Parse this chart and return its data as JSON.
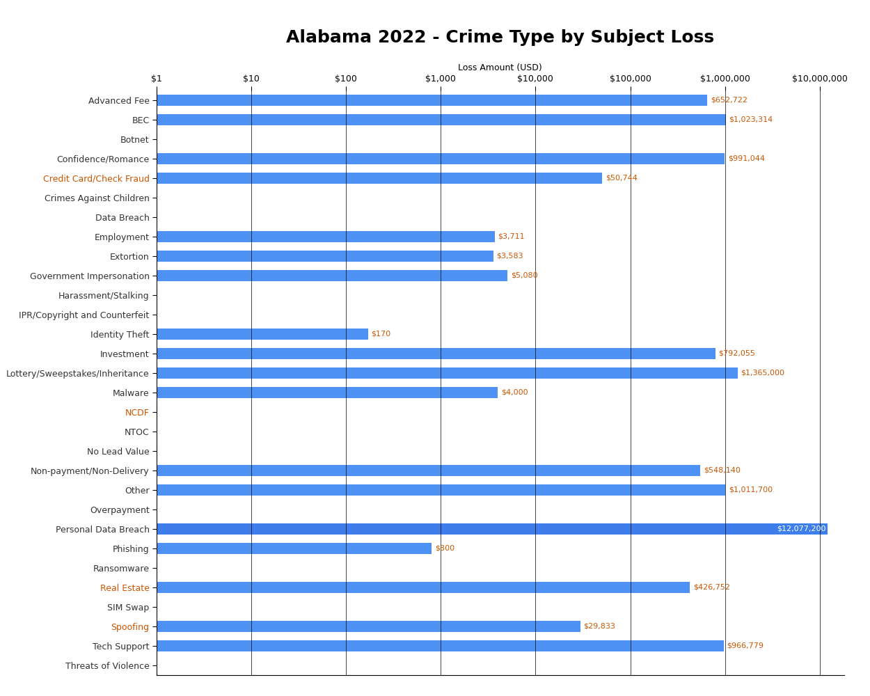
{
  "title": "Alabama 2022 - Crime Type by Subject Loss",
  "xlabel": "Loss Amount (USD)",
  "categories": [
    "Advanced Fee",
    "BEC",
    "Botnet",
    "Confidence/Romance",
    "Credit Card/Check Fraud",
    "Crimes Against Children",
    "Data Breach",
    "Employment",
    "Extortion",
    "Government Impersonation",
    "Harassment/Stalking",
    "IPR/Copyright and Counterfeit",
    "Identity Theft",
    "Investment",
    "Lottery/Sweepstakes/Inheritance",
    "Malware",
    "NCDF",
    "NTOC",
    "No Lead Value",
    "Non-payment/Non-Delivery",
    "Other",
    "Overpayment",
    "Personal Data Breach",
    "Phishing",
    "Ransomware",
    "Real Estate",
    "SIM Swap",
    "Spoofing",
    "Tech Support",
    "Threats of Violence"
  ],
  "values": [
    652722,
    1023314,
    0,
    991044,
    50744,
    0,
    0,
    3711,
    3583,
    5080,
    0,
    0,
    170,
    792055,
    1365000,
    4000,
    0,
    0,
    0,
    548140,
    1011700,
    0,
    12077200,
    800,
    0,
    426752,
    0,
    29833,
    966779,
    0
  ],
  "labels": [
    "$652,722",
    "$1,023,314",
    "",
    "$991,044",
    "$50,744",
    "",
    "",
    "$3,711",
    "$3,583",
    "$5,080",
    "",
    "",
    "$170",
    "$792,055",
    "$1,365,000",
    "$4,000",
    "",
    "",
    "",
    "$548,140",
    "$1,011,700",
    "",
    "$12,077,200",
    "$800",
    "",
    "$426,752",
    "",
    "$29,833",
    "$966,779",
    ""
  ],
  "special_labels": [
    "Credit Card/Check Fraud",
    "NCDF",
    "Real Estate",
    "Spoofing"
  ],
  "x_ticks": [
    1,
    10,
    100,
    1000,
    10000,
    100000,
    1000000,
    10000000
  ],
  "x_tick_labels": [
    "$1",
    "$10",
    "$100",
    "$1,000",
    "$10,000",
    "$100,000",
    "$1,000,000",
    "$10,000,000"
  ],
  "tick_color_map": {
    "$1": "#CC5500",
    "$10": "#333333",
    "$100": "#CC5500",
    "$1,000": "#333333",
    "$10,000": "#CC5500",
    "$100,000": "#333333",
    "$1,000,000": "#CC5500",
    "$10,000,000": "#333333"
  },
  "xlim_min": 1,
  "xlim_max": 10000000,
  "bar_color_normal": "#4e91f5",
  "bar_color_highlight": "#3d7eea",
  "label_color_normal": "#CC5500",
  "label_color_highlight": "#FFFFFF",
  "label_color_special": "#CC5500",
  "background_color": "#FFFFFF",
  "title_fontsize": 18,
  "axis_label_fontsize": 9,
  "tick_label_fontsize": 9,
  "bar_label_fontsize": 8,
  "bar_height": 0.6
}
